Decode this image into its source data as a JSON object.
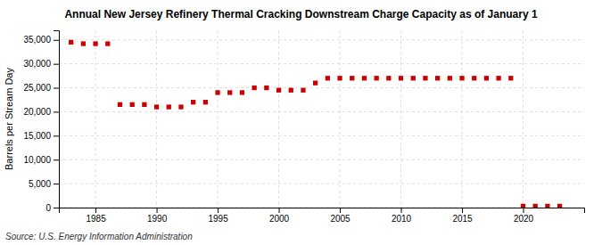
{
  "chart_data": {
    "type": "scatter",
    "title": "Annual New Jersey Refinery Thermal Cracking Downstream Charge Capacity as of January 1",
    "y_label": "Barrels per Stream Day",
    "annotations": [
      "Source: U.S. Energy Information Administration"
    ],
    "x": [
      1983,
      1984,
      1985,
      1986,
      1987,
      1988,
      1989,
      1990,
      1991,
      1992,
      1993,
      1994,
      1995,
      1996,
      1997,
      1998,
      1999,
      2000,
      2001,
      2002,
      2003,
      2004,
      2005,
      2006,
      2007,
      2008,
      2009,
      2010,
      2011,
      2012,
      2013,
      2014,
      2015,
      2016,
      2017,
      2018,
      2019,
      2020,
      2021,
      2022,
      2023
    ],
    "values": [
      34500,
      34200,
      34200,
      34200,
      21500,
      21500,
      21500,
      21000,
      21000,
      21000,
      22000,
      22000,
      24000,
      24000,
      24000,
      25000,
      25000,
      24500,
      24500,
      24500,
      26000,
      27000,
      27000,
      27000,
      27000,
      27000,
      27000,
      27000,
      27000,
      27000,
      27000,
      27000,
      27000,
      27000,
      27000,
      27000,
      27000,
      300,
      300,
      300,
      300
    ],
    "color": "#cc0000",
    "marker": "square",
    "xlim": [
      1982,
      2025
    ],
    "xticks": [
      1985,
      1990,
      1995,
      2000,
      2005,
      2010,
      2015,
      2020
    ],
    "ylim": [
      0,
      37000
    ],
    "yticks": [
      0,
      {
        "value": 5000,
        "label": "5,000"
      },
      {
        "value": 10000,
        "label": "10,000"
      },
      {
        "value": 15000,
        "label": "15,000"
      },
      {
        "value": 20000,
        "label": "20,000"
      },
      {
        "value": 25000,
        "label": "25,000"
      },
      {
        "value": 30000,
        "label": "30,000"
      },
      {
        "value": 35000,
        "label": "35,000"
      }
    ],
    "grid": true
  }
}
